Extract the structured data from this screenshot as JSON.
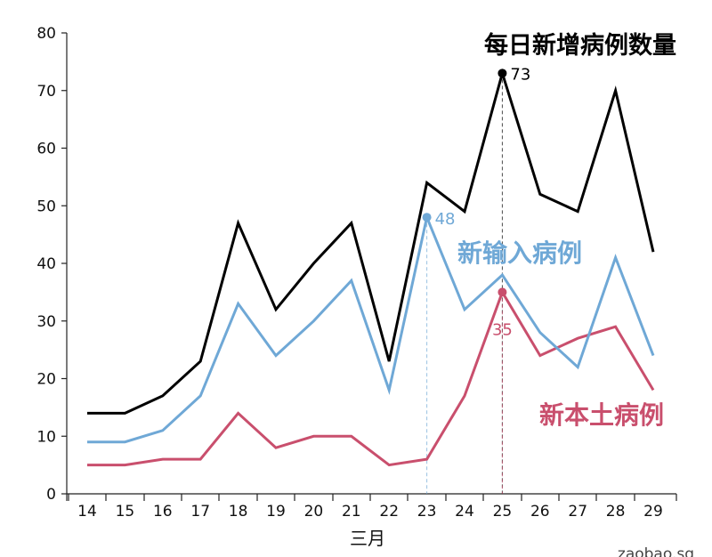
{
  "chart_data": {
    "type": "line",
    "title": "每日新增病例数量",
    "xlabel": "三月",
    "ylabel": "",
    "ylim": [
      0,
      80
    ],
    "yticks": [
      0,
      10,
      20,
      30,
      40,
      50,
      60,
      70,
      80
    ],
    "categories": [
      "14",
      "15",
      "16",
      "17",
      "18",
      "19",
      "20",
      "21",
      "22",
      "23",
      "24",
      "25",
      "26",
      "27",
      "28",
      "29"
    ],
    "series": [
      {
        "name": "每日新增病例数量",
        "color": "#000000",
        "values": [
          14,
          14,
          17,
          23,
          47,
          32,
          40,
          47,
          23,
          54,
          49,
          73,
          52,
          49,
          70,
          42
        ]
      },
      {
        "name": "新输入病例",
        "color": "#6fa8d6",
        "values": [
          9,
          9,
          11,
          17,
          33,
          24,
          30,
          37,
          18,
          48,
          32,
          38,
          28,
          22,
          41,
          24
        ]
      },
      {
        "name": "新本土病例",
        "color": "#c94f6d",
        "values": [
          5,
          5,
          6,
          6,
          14,
          8,
          10,
          10,
          5,
          6,
          17,
          35,
          24,
          27,
          29,
          18
        ]
      }
    ],
    "annotations": [
      {
        "series": 0,
        "index": 11,
        "text": "73"
      },
      {
        "series": 1,
        "index": 9,
        "text": "48"
      },
      {
        "series": 2,
        "index": 11,
        "text": "35"
      }
    ],
    "grid": false
  },
  "labels": {
    "title": "每日新增病例数量",
    "imported": "新输入病例",
    "local": "新本土病例",
    "month": "三月",
    "watermark": "zaobao.sg"
  }
}
